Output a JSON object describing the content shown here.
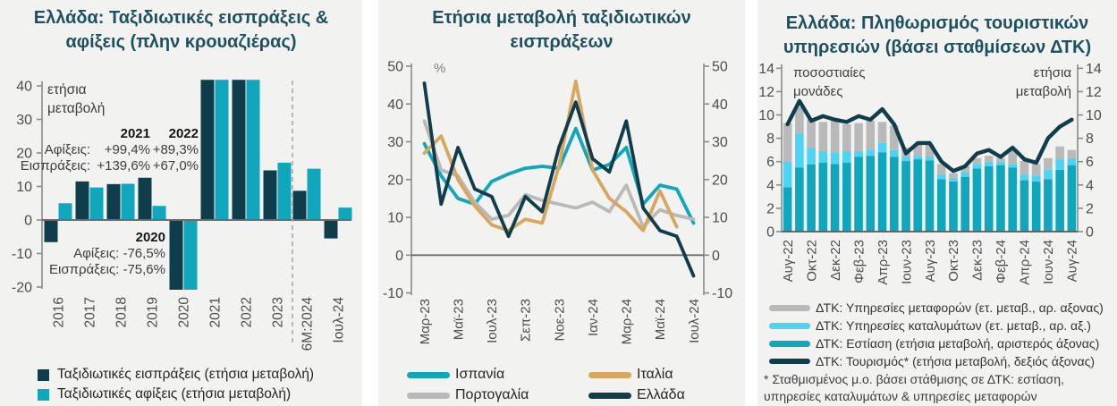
{
  "colors": {
    "navy": "#0f3d4b",
    "teal": "#10a6bb",
    "cyan": "#4ed3f2",
    "gray": "#b9b9b9",
    "tan": "#d9a65f",
    "title": "#1e5160",
    "axis_line": "#8a8a8a",
    "zero_line": "#6b6b6b",
    "tick_text": "#4d4d4d",
    "annotation_text": "#3d3d3d",
    "panel_background": "#f2f2f1"
  },
  "chart_data": [
    {
      "type": "bar",
      "title_line1": "Ελλάδα: Ταξιδιωτικές εισπράξεις &",
      "title_line2": "αφίξεις (πλην κρουαζιέρας)",
      "inner_label": [
        "ετήσια",
        "μεταβολή"
      ],
      "categories": [
        "2016",
        "2017",
        "2018",
        "2019",
        "2020",
        "2021",
        "2022",
        "2023",
        "6Μ:2024",
        "Ιουλ-24"
      ],
      "series": [
        {
          "name": "Ταξιδιωτικές εισπράξεις (ετήσια μεταβολή)",
          "color": "navy",
          "values": [
            -6.6,
            11.5,
            10.7,
            12.6,
            -75.6,
            139.6,
            67.0,
            14.8,
            8.7,
            -5.5
          ]
        },
        {
          "name": "Ταξιδιωτικές αφίξεις (ετήσια μεταβολή)",
          "color": "teal",
          "values": [
            5.0,
            9.7,
            10.8,
            4.2,
            -76.5,
            99.4,
            89.3,
            17.1,
            15.3,
            3.7
          ]
        }
      ],
      "ylim": [
        -20,
        40
      ],
      "yticks": [
        40,
        30,
        20,
        10,
        0,
        -10,
        -20
      ],
      "separator_after_index": 7,
      "annotation_2021_2022": {
        "years": [
          "2021",
          "2022"
        ],
        "rows": [
          {
            "label": "Αφίξεις:",
            "values": [
              "+99,4%",
              "+89,3%"
            ]
          },
          {
            "label": "Εισπράξεις:",
            "values": [
              "+139,6%",
              "+67,0%"
            ]
          }
        ]
      },
      "annotation_2020": {
        "lines": [
          "2020",
          "Αφίξεις: -76,5%",
          "Εισπράξεις: -75,6%"
        ]
      }
    },
    {
      "type": "line",
      "title_line1": "Ετήσια μεταβολή ταξιδιωτικών",
      "title_line2": "εισπράξεων",
      "unit_label": "%",
      "x": [
        "Μαρ-23",
        "Απρ-23",
        "Μαϊ-23",
        "Ιουν-23",
        "Ιουλ-23",
        "Αυγ-23",
        "Σεπ-23",
        "Οκτ-23",
        "Νοε-23",
        "Δεκ-23",
        "Ιαν-24",
        "Φεβ-24",
        "Μαρ-24",
        "Απρ-24",
        "Μαϊ-24",
        "Ιουν-24",
        "Ιουλ-24"
      ],
      "x_tick_labels": [
        "Μαρ-23",
        "Μαϊ-23",
        "Ιουλ-23",
        "Σεπ-23",
        "Νοε-23",
        "Ιαν-24",
        "Μαρ-24",
        "Μαϊ-24",
        "Ιουλ-24"
      ],
      "series": [
        {
          "name": "Ισπανία",
          "color": "teal",
          "values": [
            29.5,
            21,
            15,
            13.5,
            19.5,
            21.5,
            23,
            23.5,
            23,
            33.5,
            22.5,
            24,
            28.5,
            13.5,
            18.5,
            17.5,
            8.5
          ]
        },
        {
          "name": "Πορτογαλία",
          "color": "gray",
          "values": [
            35.5,
            22.5,
            21,
            14,
            9.5,
            10.5,
            16,
            14.5,
            13.5,
            12.5,
            14,
            11.5,
            18.5,
            7.5,
            12,
            10.5,
            9.5
          ]
        },
        {
          "name": "Ιταλία",
          "color": "tan",
          "values": [
            27,
            31.5,
            20,
            13,
            8,
            6.5,
            9.5,
            8.5,
            23.5,
            46,
            22.5,
            15,
            11.5,
            6.5,
            17,
            7.5,
            null
          ]
        },
        {
          "name": "Ελλάδα",
          "color": "navy",
          "values": [
            45.5,
            13.5,
            28.5,
            17.5,
            15.5,
            5,
            15.5,
            11.5,
            28.5,
            40.5,
            25.5,
            22,
            35.5,
            12.5,
            6.5,
            5,
            -5.5
          ]
        }
      ],
      "ylim": [
        -10,
        50
      ],
      "yticks": [
        50,
        40,
        30,
        20,
        10,
        0,
        -10
      ],
      "legend_order": [
        "Ισπανία",
        "Πορτογαλία",
        "Ιταλία",
        "Ελλάδα"
      ]
    },
    {
      "type": "stacked-bar-line",
      "title_line1": "Ελλάδα: Πληθωρισμός τουριστικών",
      "title_line2": "υπηρεσιών (βάσει σταθμίσεων ΔΤΚ)",
      "left_inner_label": [
        "ποσοστιαίες",
        "μονάδες"
      ],
      "right_inner_label": [
        "ετήσια",
        "μεταβολή"
      ],
      "x": [
        "Αυγ-22",
        "Σεπ-22",
        "Οκτ-22",
        "Νοε-22",
        "Δεκ-22",
        "Ιαν-23",
        "Φεβ-23",
        "Μαρ-23",
        "Απρ-23",
        "Μαϊ-23",
        "Ιουν-23",
        "Ιουλ-23",
        "Αυγ-23",
        "Σεπ-23",
        "Οκτ-23",
        "Νοε-23",
        "Δεκ-23",
        "Ιαν-24",
        "Φεβ-24",
        "Μαρ-24",
        "Απρ-24",
        "Μαϊ-24",
        "Ιουν-24",
        "Ιουλ-24",
        "Αυγ-24"
      ],
      "x_tick_labels": [
        "Αυγ-22",
        "Οκτ-22",
        "Δεκ-22",
        "Φεβ-23",
        "Απρ-23",
        "Ιουν-23",
        "Αυγ-23",
        "Οκτ-23",
        "Δεκ-23",
        "Φεβ-24",
        "Απρ-24",
        "Ιουν-24",
        "Αυγ-24"
      ],
      "bar_series": [
        {
          "name": "ΔΤΚ: Εστίαση (ετήσια μεταβολή, αριστερός άξονας)",
          "color": "teal",
          "values": [
            3.8,
            5.5,
            5.75,
            5.9,
            5.8,
            5.9,
            6.4,
            6.5,
            6.8,
            6.4,
            6.05,
            6.2,
            6.1,
            4.5,
            4.3,
            4.7,
            5.4,
            5.6,
            5.7,
            5.5,
            4.4,
            4.3,
            4.5,
            5.3,
            5.7
          ]
        },
        {
          "name": "ΔΤΚ: Υπηρεσίες καταλυμάτων (ετ. μεταβ., αρ. αξ.)",
          "color": "cyan",
          "values": [
            2.2,
            2.9,
            1.45,
            1.0,
            1.0,
            1.0,
            0.5,
            0.5,
            0.8,
            0.6,
            0.35,
            0.3,
            0.3,
            0.4,
            0.3,
            0.4,
            0.4,
            0.4,
            0.3,
            0.3,
            0.5,
            0.5,
            0.8,
            0.9,
            0.6
          ]
        },
        {
          "name": "ΔΤΚ: Υπηρεσίες μεταφορών (ετ. μεταβ., αρ. αξονας)",
          "color": "gray",
          "values": [
            3.3,
            2.3,
            2.4,
            2.5,
            2.7,
            2.3,
            2.4,
            2.5,
            1.8,
            2.1,
            0.8,
            0.95,
            1.1,
            0.9,
            0.4,
            0.5,
            0.5,
            0.5,
            0.3,
            1.3,
            1.15,
            1.0,
            1.0,
            1.1,
            0.7
          ]
        }
      ],
      "line_series": {
        "name": "ΔΤΚ: Τουρισμός* (ετήσια μεταβολή, δεξιός άξονας)",
        "color": "navy",
        "values": [
          9.2,
          11.2,
          9.5,
          9.9,
          9.6,
          9.4,
          9.9,
          9.6,
          10.5,
          9.2,
          6.7,
          7.6,
          7.6,
          6.0,
          5.2,
          5.6,
          6.7,
          7.0,
          6.4,
          7.2,
          6.2,
          5.9,
          8.0,
          9.0,
          9.6
        ]
      },
      "ylim": [
        0,
        14
      ],
      "yticks": [
        0,
        2,
        4,
        6,
        8,
        10,
        12,
        14
      ],
      "legend": [
        {
          "label": "ΔΤΚ: Υπηρεσίες μεταφορών (ετ. μεταβ., αρ. αξονας)",
          "color": "gray"
        },
        {
          "label": "ΔΤΚ: Υπηρεσίες καταλυμάτων (ετ. μεταβ., αρ. αξ.)",
          "color": "cyan"
        },
        {
          "label": "ΔΤΚ: Εστίαση (ετήσια μεταβολή, αριστερός άξονας)",
          "color": "teal"
        },
        {
          "label": "ΔΤΚ: Τουρισμός* (ετήσια μεταβολή, δεξιός άξονας)",
          "color": "navy"
        }
      ],
      "footnote_line1": "* Σταθμισμένος μ.ο. βάσει στάθμισης σε ΔΤΚ: εστίαση,",
      "footnote_line2": "υπηρεσίες καταλυμάτων & υπηρεσίες μεταφορών"
    }
  ]
}
